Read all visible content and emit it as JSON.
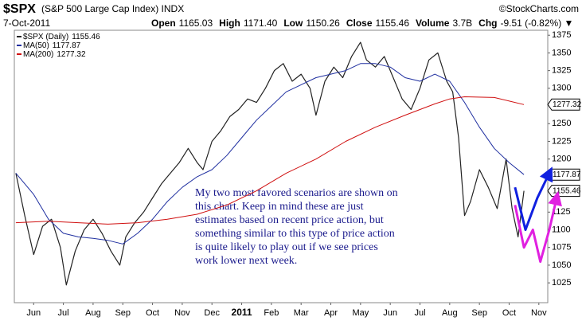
{
  "chart_data": {
    "type": "line",
    "title": "$SPX",
    "subtitle": "(S&P 500 Large Cap Index) INDX",
    "source": "©StockCharts.com",
    "date": "7-Oct-2011",
    "quote": [
      {
        "label": "Open",
        "value": "1165.03"
      },
      {
        "label": "High",
        "value": "1171.40"
      },
      {
        "label": "Low",
        "value": "1150.26"
      },
      {
        "label": "Close",
        "value": "1155.46"
      },
      {
        "label": "Volume",
        "value": "3.7B"
      },
      {
        "label": "Chg",
        "value": "-9.51 (-0.82%) ▼"
      }
    ],
    "annotation": [
      "My two most favored scenarios are shown on",
      "this chart. Keep in mind these are just",
      "estimates based on recent price action, but",
      "something similar to this type of price action",
      "is quite likely to play out if we see prices",
      "work lower next week."
    ],
    "xlim": [
      -0.65,
      17.3
    ],
    "xticks": [
      {
        "value": 0,
        "label": "Jun"
      },
      {
        "value": 1,
        "label": "Jul"
      },
      {
        "value": 2,
        "label": "Aug"
      },
      {
        "value": 3,
        "label": "Sep"
      },
      {
        "value": 4,
        "label": "Oct"
      },
      {
        "value": 5,
        "label": "Nov"
      },
      {
        "value": 6,
        "label": "Dec"
      },
      {
        "value": 7,
        "label": "2011"
      },
      {
        "value": 8,
        "label": "Feb"
      },
      {
        "value": 9,
        "label": "Mar"
      },
      {
        "value": 10,
        "label": "Apr"
      },
      {
        "value": 11,
        "label": "May"
      },
      {
        "value": 12,
        "label": "Jun"
      },
      {
        "value": 13,
        "label": "Jul"
      },
      {
        "value": 14,
        "label": "Aug"
      },
      {
        "value": 15,
        "label": "Sep"
      },
      {
        "value": 16,
        "label": "Oct"
      },
      {
        "value": 17,
        "label": "Nov"
      }
    ],
    "ylim": [
      997,
      1382
    ],
    "yticks": [
      1025,
      1050,
      1075,
      1100,
      1125,
      1200,
      1225,
      1250,
      1300,
      1325,
      1350,
      1375
    ],
    "grid": false,
    "series": [
      {
        "name": "$SPX (Daily)",
        "last_label": "1155.46",
        "color": "#222222",
        "width": 1.2,
        "x": [
          -0.6,
          -0.3,
          0.0,
          0.3,
          0.6,
          0.9,
          1.1,
          1.4,
          1.7,
          2.0,
          2.3,
          2.6,
          2.9,
          3.1,
          3.4,
          3.7,
          4.0,
          4.3,
          4.6,
          4.9,
          5.2,
          5.5,
          5.7,
          6.0,
          6.3,
          6.6,
          6.9,
          7.2,
          7.5,
          7.8,
          8.1,
          8.4,
          8.7,
          9.0,
          9.3,
          9.5,
          9.8,
          10.1,
          10.4,
          10.7,
          11.0,
          11.2,
          11.5,
          11.8,
          12.1,
          12.4,
          12.7,
          13.0,
          13.3,
          13.6,
          13.9,
          14.1,
          14.3,
          14.5,
          14.7,
          15.0,
          15.3,
          15.6,
          15.9,
          16.1,
          16.3,
          16.5
        ],
        "values": [
          1180,
          1120,
          1065,
          1105,
          1115,
          1075,
          1022,
          1070,
          1100,
          1115,
          1095,
          1070,
          1050,
          1090,
          1110,
          1125,
          1145,
          1165,
          1180,
          1195,
          1215,
          1195,
          1185,
          1225,
          1240,
          1260,
          1270,
          1285,
          1280,
          1300,
          1325,
          1335,
          1310,
          1320,
          1300,
          1262,
          1310,
          1330,
          1315,
          1345,
          1365,
          1340,
          1330,
          1345,
          1315,
          1285,
          1270,
          1300,
          1340,
          1350,
          1310,
          1295,
          1230,
          1120,
          1140,
          1185,
          1160,
          1130,
          1200,
          1130,
          1090,
          1155
        ]
      },
      {
        "name": "MA(50)",
        "last_label": "1177.87",
        "color": "#1f2fa0",
        "width": 1,
        "x": [
          -0.6,
          0.0,
          0.5,
          1.0,
          1.5,
          2.0,
          2.5,
          3.0,
          3.5,
          4.0,
          4.5,
          5.0,
          5.5,
          6.0,
          6.5,
          7.0,
          7.5,
          8.0,
          8.5,
          9.0,
          9.5,
          10.0,
          10.5,
          11.0,
          11.5,
          12.0,
          12.5,
          13.0,
          13.5,
          14.0,
          14.5,
          15.0,
          15.5,
          16.0,
          16.5
        ],
        "values": [
          1180,
          1150,
          1115,
          1095,
          1090,
          1088,
          1085,
          1080,
          1095,
          1115,
          1140,
          1160,
          1175,
          1185,
          1205,
          1230,
          1255,
          1275,
          1295,
          1305,
          1315,
          1320,
          1325,
          1335,
          1335,
          1330,
          1315,
          1310,
          1320,
          1310,
          1280,
          1245,
          1215,
          1195,
          1178
        ]
      },
      {
        "name": "MA(200)",
        "last_label": "1277.32",
        "color": "#d01010",
        "width": 1,
        "x": [
          -0.6,
          0.5,
          1.5,
          2.5,
          3.5,
          4.5,
          5.5,
          6.5,
          7.5,
          8.5,
          9.5,
          10.5,
          11.5,
          12.5,
          13.5,
          14.0,
          14.5,
          15.5,
          16.5
        ],
        "values": [
          1110,
          1112,
          1110,
          1108,
          1110,
          1115,
          1122,
          1135,
          1155,
          1180,
          1200,
          1225,
          1245,
          1262,
          1278,
          1285,
          1288,
          1287,
          1277
        ]
      },
      {
        "color": "#1020e0",
        "width": 3,
        "arrow": true,
        "x": [
          16.2,
          16.55,
          16.95,
          17.35
        ],
        "values": [
          1160,
          1100,
          1145,
          1180
        ]
      },
      {
        "color": "#e020e0",
        "width": 3,
        "arrow": true,
        "x": [
          16.2,
          16.5,
          16.8,
          17.05,
          17.35,
          17.6
        ],
        "values": [
          1135,
          1075,
          1100,
          1055,
          1100,
          1145
        ]
      }
    ]
  }
}
